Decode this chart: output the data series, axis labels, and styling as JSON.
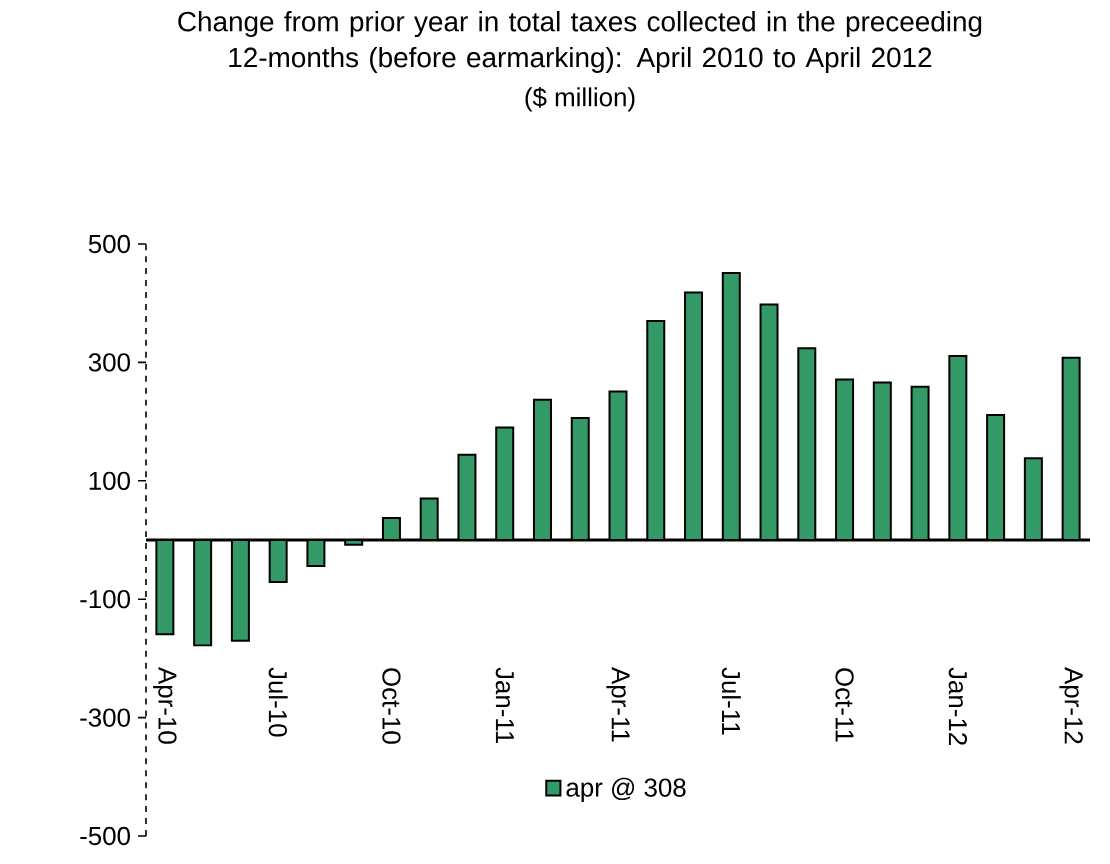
{
  "chart_data": {
    "type": "bar",
    "title": "Change from prior year in total taxes collected in the preceeding 12-months (before earmarking): April 2010 to April 2012",
    "subtitle": "($ million)",
    "categories": [
      "Apr-10",
      null,
      null,
      "Jul-10",
      null,
      null,
      "Oct-10",
      null,
      null,
      "Jan-11",
      null,
      null,
      "Apr-11",
      null,
      null,
      "Jul-11",
      null,
      null,
      "Oct-11",
      null,
      null,
      "Jan-12",
      null,
      null,
      "Apr-12"
    ],
    "series": [
      {
        "name": "apr @ 308",
        "color": "#339966",
        "values": [
          -159,
          -178,
          -170,
          -71,
          -44,
          -8,
          37,
          70,
          144,
          190,
          237,
          206,
          251,
          370,
          418,
          451,
          398,
          324,
          271,
          266,
          259,
          311,
          211,
          138,
          308
        ]
      }
    ],
    "ylim": [
      -500,
      500
    ],
    "yticks": [
      -500,
      -300,
      -100,
      100,
      300,
      500
    ],
    "grid": false,
    "legend": "bottom"
  }
}
